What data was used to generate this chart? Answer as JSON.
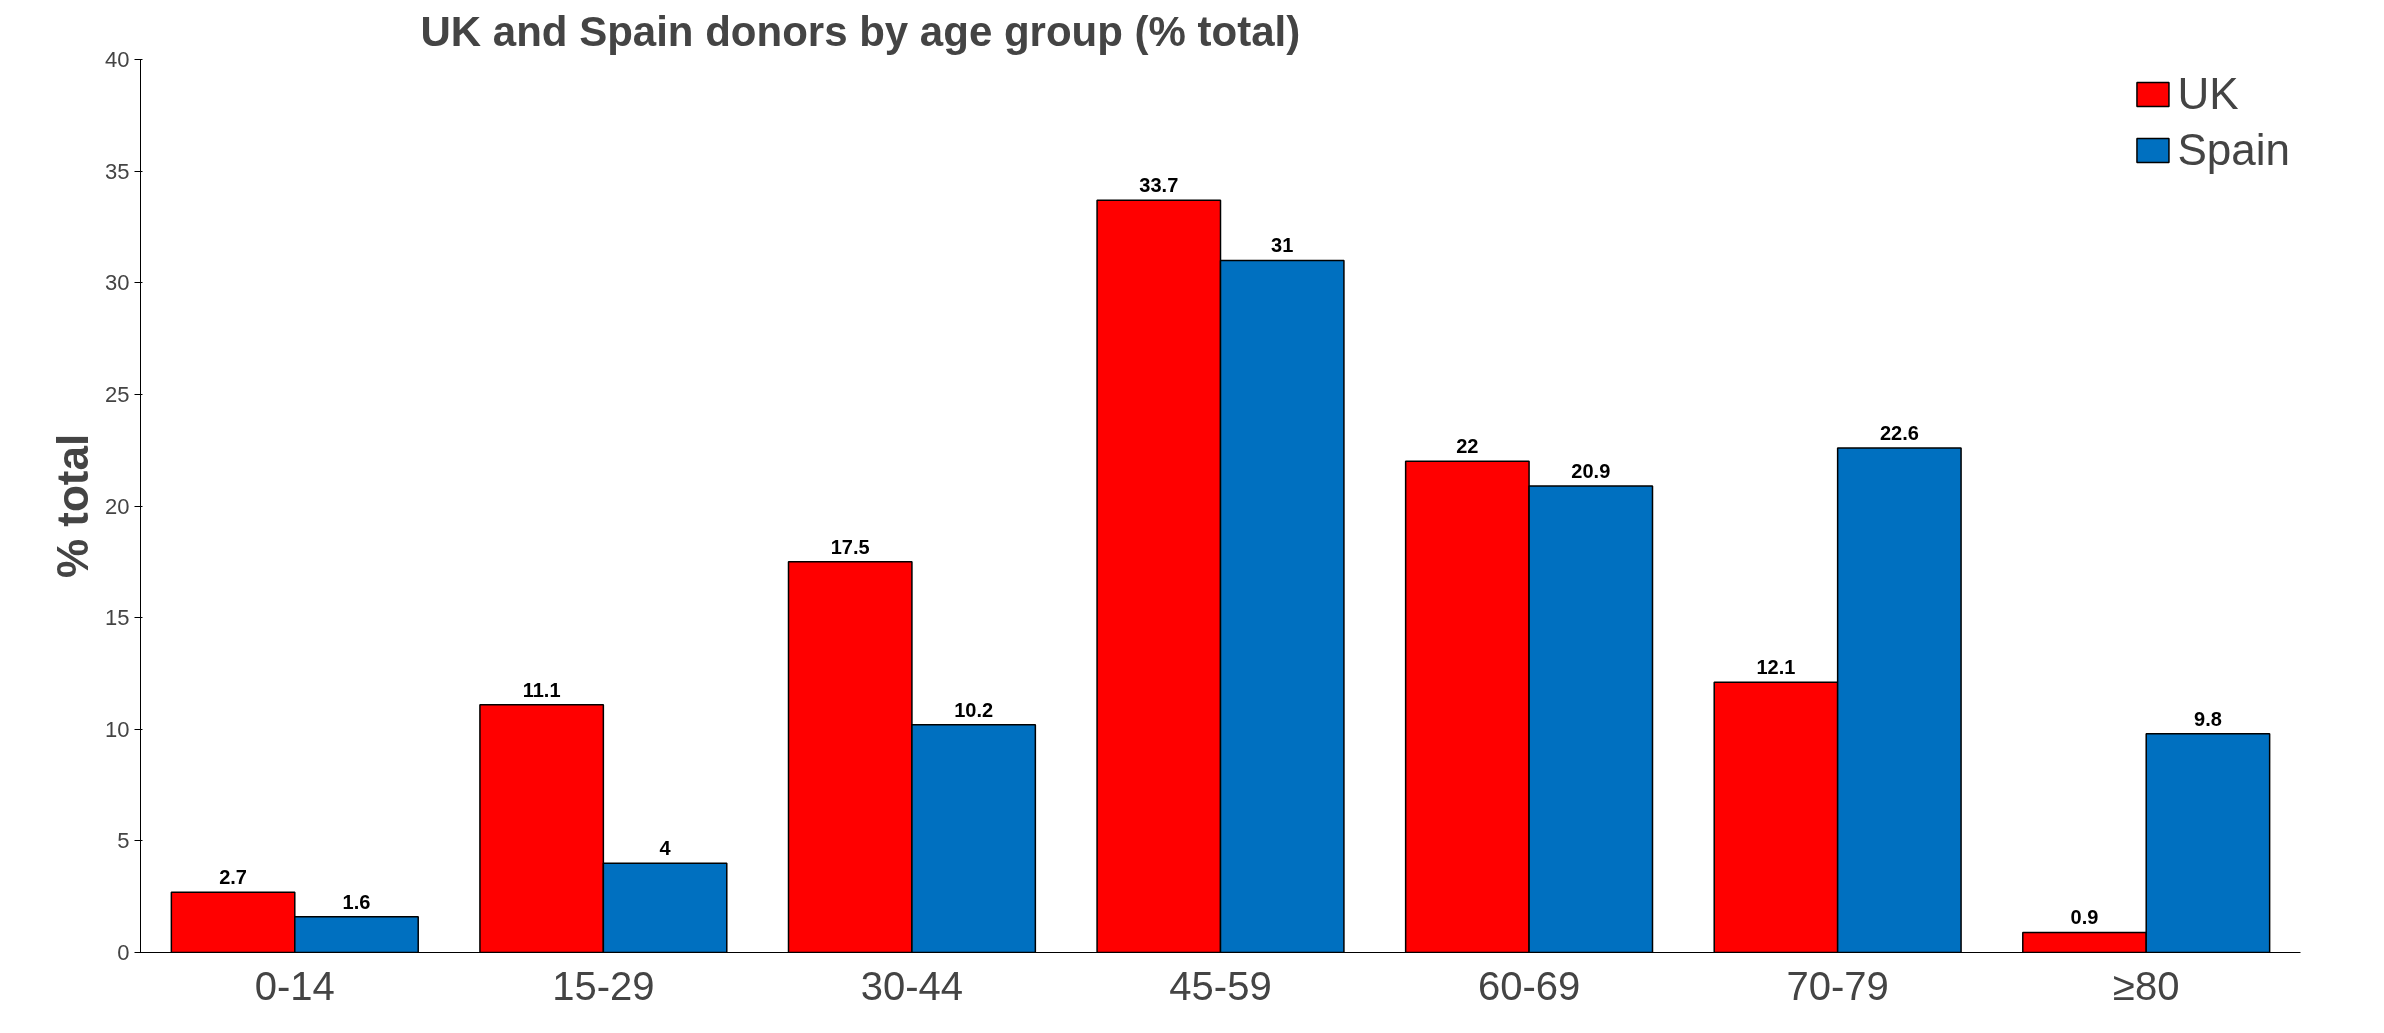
{
  "chart_data": {
    "type": "bar",
    "title": "UK and Spain donors by age group (% total)",
    "ylabel": "% total",
    "categories": [
      "0-14",
      "15-29",
      "30-44",
      "45-59",
      "60-69",
      "70-79",
      "≥80"
    ],
    "series": [
      {
        "name": "UK",
        "color": "#ff0000",
        "values": [
          2.7,
          11.1,
          17.5,
          33.7,
          22,
          12.1,
          0.9
        ]
      },
      {
        "name": "Spain",
        "color": "#0070c0",
        "values": [
          1.6,
          4,
          10.2,
          31,
          20.9,
          22.6,
          9.8
        ]
      }
    ],
    "ylim": [
      0,
      40
    ],
    "yticks": [
      0,
      5,
      10,
      15,
      20,
      25,
      30,
      35,
      40
    ],
    "grid": false,
    "legend": "top right",
    "data_labels": true
  }
}
